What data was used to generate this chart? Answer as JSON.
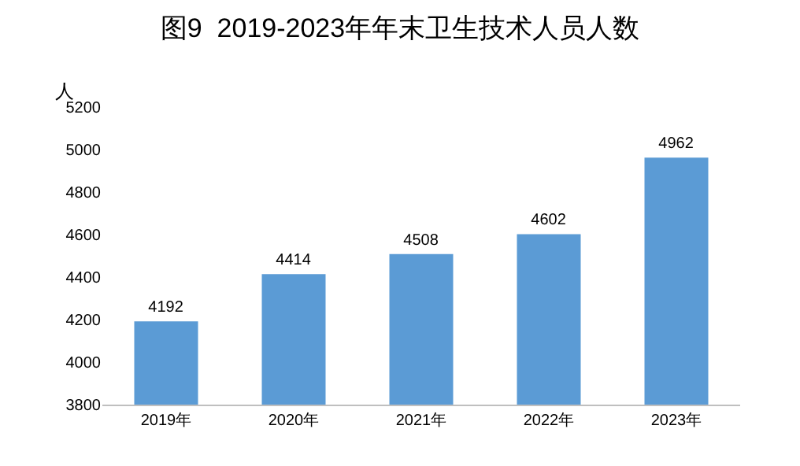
{
  "chart_data": {
    "type": "bar",
    "title": "图9  2019-2023年年末卫生技术人员人数",
    "ylabel": "人",
    "categories": [
      "2019年",
      "2020年",
      "2021年",
      "2022年",
      "2023年"
    ],
    "values": [
      4192,
      4414,
      4508,
      4602,
      4962
    ],
    "color": "#5b9bd5",
    "ylim": [
      3800,
      5200
    ],
    "yticks": [
      3800,
      4000,
      4200,
      4400,
      4600,
      4800,
      5000,
      5200
    ],
    "grid": false,
    "data_labels": true
  }
}
